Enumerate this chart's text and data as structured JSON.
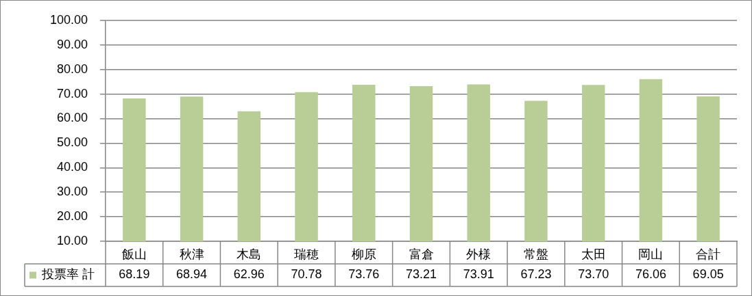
{
  "chart_data": {
    "type": "bar",
    "categories": [
      "飯山",
      "秋津",
      "木島",
      "瑞穂",
      "柳原",
      "富倉",
      "外様",
      "常盤",
      "太田",
      "岡山",
      "合計"
    ],
    "series": [
      {
        "name": "投票率 計",
        "color": "#b9ce97",
        "values": [
          68.19,
          68.94,
          62.96,
          70.78,
          73.76,
          73.21,
          73.91,
          67.23,
          73.7,
          76.06,
          69.05
        ],
        "value_labels": [
          "68.19",
          "68.94",
          "62.96",
          "70.78",
          "73.76",
          "73.21",
          "73.91",
          "67.23",
          "73.70",
          "76.06",
          "69.05"
        ]
      }
    ],
    "ylim": [
      10,
      100
    ],
    "yticks": [
      {
        "value": 10,
        "label": "10.00"
      },
      {
        "value": 20,
        "label": "20.00"
      },
      {
        "value": 30,
        "label": "30.00"
      },
      {
        "value": 40,
        "label": "40.00"
      },
      {
        "value": 50,
        "label": "50.00"
      },
      {
        "value": 60,
        "label": "60.00"
      },
      {
        "value": 70,
        "label": "70.00"
      },
      {
        "value": 80,
        "label": "80.00"
      },
      {
        "value": 90,
        "label": "90.00"
      },
      {
        "value": 100,
        "label": "100.00"
      }
    ],
    "grid": "y",
    "legend": "bottom left"
  }
}
